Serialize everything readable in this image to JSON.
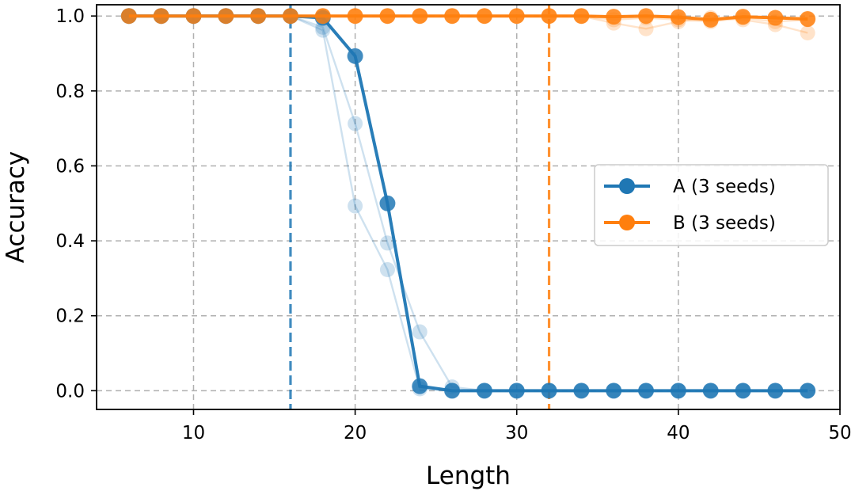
{
  "chart_data": {
    "type": "line",
    "xlabel": "Length",
    "ylabel": "Accuracy",
    "xlim": [
      4,
      50
    ],
    "ylim": [
      -0.05,
      1.03
    ],
    "xticks": [
      10,
      20,
      30,
      40,
      50
    ],
    "yticks": [
      0.0,
      0.2,
      0.4,
      0.6,
      0.8,
      1.0
    ],
    "ytick_labels": [
      "0.0",
      "0.2",
      "0.4",
      "0.6",
      "0.8",
      "1.0"
    ],
    "grid": true,
    "legend_position": "center-right",
    "x": [
      6,
      8,
      10,
      12,
      14,
      16,
      18,
      20,
      22,
      24,
      26,
      28,
      30,
      32,
      34,
      36,
      38,
      40,
      42,
      44,
      46,
      48
    ],
    "series": [
      {
        "name": "A (3 seeds)",
        "color": "#1f77b4",
        "values": [
          1.0,
          1.0,
          1.0,
          1.0,
          1.0,
          1.0,
          0.995,
          0.893,
          0.5,
          0.012,
          0.0,
          0.0,
          0.0,
          0.0,
          0.0,
          0.0,
          0.0,
          0.0,
          0.0,
          0.0,
          0.0,
          0.0
        ],
        "seeds": [
          [
            1.0,
            1.0,
            1.0,
            1.0,
            1.0,
            1.0,
            0.97,
            0.713,
            0.394,
            0.157,
            0.01,
            0.0,
            0.0,
            0.0,
            0.0,
            0.0,
            0.0,
            0.0,
            0.0,
            0.0,
            0.0,
            0.0
          ],
          [
            1.0,
            1.0,
            1.0,
            1.0,
            1.0,
            1.0,
            0.962,
            0.493,
            0.323,
            0.005,
            0.0,
            0.0,
            0.0,
            0.0,
            0.0,
            0.0,
            0.0,
            0.0,
            0.0,
            0.0,
            0.0,
            0.0
          ],
          [
            1.0,
            1.0,
            1.0,
            1.0,
            1.0,
            1.0,
            0.995,
            0.893,
            0.5,
            0.012,
            0.0,
            0.0,
            0.0,
            0.0,
            0.0,
            0.0,
            0.0,
            0.0,
            0.0,
            0.0,
            0.0,
            0.0
          ]
        ],
        "threshold_x": 16
      },
      {
        "name": "B (3 seeds)",
        "color": "#ff7f0e",
        "values": [
          1.0,
          1.0,
          1.0,
          1.0,
          1.0,
          1.0,
          1.0,
          1.0,
          1.0,
          1.0,
          1.0,
          1.0,
          1.0,
          1.0,
          1.0,
          0.998,
          1.0,
          0.997,
          0.99,
          0.998,
          0.995,
          0.992
        ],
        "seeds": [
          [
            1.0,
            1.0,
            1.0,
            1.0,
            1.0,
            1.0,
            1.0,
            1.0,
            1.0,
            1.0,
            1.0,
            1.0,
            1.0,
            1.0,
            1.0,
            0.981,
            0.966,
            0.985,
            0.995,
            0.99,
            0.977,
            0.955
          ],
          [
            1.0,
            1.0,
            1.0,
            1.0,
            1.0,
            1.0,
            1.0,
            1.0,
            1.0,
            1.0,
            1.0,
            1.0,
            1.0,
            1.0,
            1.0,
            0.99,
            0.995,
            0.99,
            0.985,
            0.995,
            0.985,
            0.99
          ],
          [
            1.0,
            1.0,
            1.0,
            1.0,
            1.0,
            1.0,
            1.0,
            1.0,
            1.0,
            1.0,
            1.0,
            1.0,
            1.0,
            1.0,
            1.0,
            0.998,
            1.0,
            0.997,
            0.99,
            0.998,
            0.995,
            0.992
          ]
        ],
        "threshold_x": 32
      }
    ]
  }
}
